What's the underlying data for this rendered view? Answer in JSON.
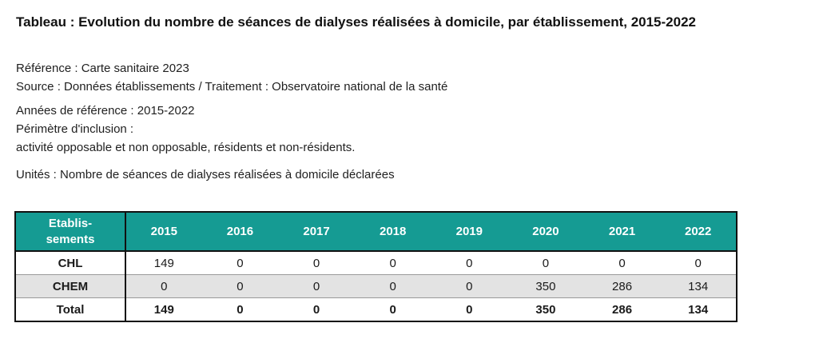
{
  "title": "Tableau : Evolution du nombre de séances de dialyses réalisées à domicile, par établissement, 2015-2022",
  "meta": {
    "reference": "Référence : Carte sanitaire 2023",
    "source": "Source : Données établissements / Traitement : Observatoire national de la santé",
    "annees": "Années de référence : 2015-2022",
    "perimetre_label": "Périmètre d'inclusion :",
    "perimetre_value": "activité opposable et non opposable, résidents et non-résidents.",
    "unites": "Unités : Nombre de séances de dialyses réalisées à domicile déclarées"
  },
  "table": {
    "header_first_line1": "Etablis-",
    "header_first_line2": "sements",
    "years": [
      "2015",
      "2016",
      "2017",
      "2018",
      "2019",
      "2020",
      "2021",
      "2022"
    ],
    "rows": [
      {
        "label": "CHL",
        "values": [
          "149",
          "0",
          "0",
          "0",
          "0",
          "0",
          "0",
          "0"
        ]
      },
      {
        "label": "CHEM",
        "values": [
          "0",
          "0",
          "0",
          "0",
          "0",
          "350",
          "286",
          "134"
        ]
      },
      {
        "label": "Total",
        "values": [
          "149",
          "0",
          "0",
          "0",
          "0",
          "350",
          "286",
          "134"
        ]
      }
    ]
  },
  "colors": {
    "header_bg": "#159b93",
    "alt_row_bg": "#e3e3e3"
  }
}
